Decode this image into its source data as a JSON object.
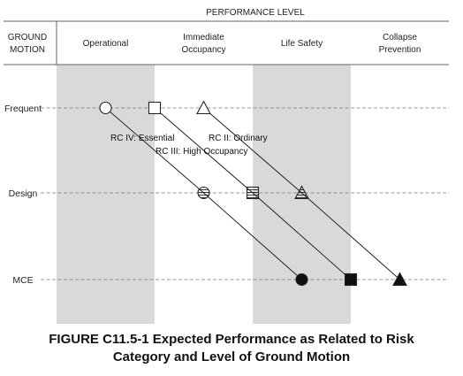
{
  "diagram": {
    "top_header": "PERFORMANCE LEVEL",
    "corner_header": [
      "GROUND",
      "MOTION"
    ],
    "columns": [
      {
        "label": [
          "Operational"
        ],
        "shaded": true
      },
      {
        "label": [
          "Immediate",
          "Occupancy"
        ],
        "shaded": false
      },
      {
        "label": [
          "Life Safety"
        ],
        "shaded": true
      },
      {
        "label": [
          "Collapse",
          "Prevention"
        ],
        "shaded": false
      }
    ],
    "rows": [
      "Frequent",
      "Design",
      "MCE"
    ],
    "series": [
      {
        "name": "RC IV: Essential",
        "marker": "circle",
        "positions": [
          0.5,
          1.5,
          2.5
        ]
      },
      {
        "name": "RC III: High Occupancy",
        "marker": "square",
        "positions": [
          1.0,
          2.0,
          3.0
        ]
      },
      {
        "name": "RC II: Ordinary",
        "marker": "triangle",
        "positions": [
          1.5,
          2.5,
          3.5
        ]
      }
    ],
    "marker_fill_by_row": [
      "open",
      "hatched",
      "filled"
    ],
    "colors": {
      "shade": "#d9d9d9",
      "line": "#222222",
      "header_border": "#666666"
    }
  },
  "caption": {
    "line1": "FIGURE C11.5-1 Expected Performance as Related to Risk",
    "line2": "Category and Level of Ground Motion"
  }
}
